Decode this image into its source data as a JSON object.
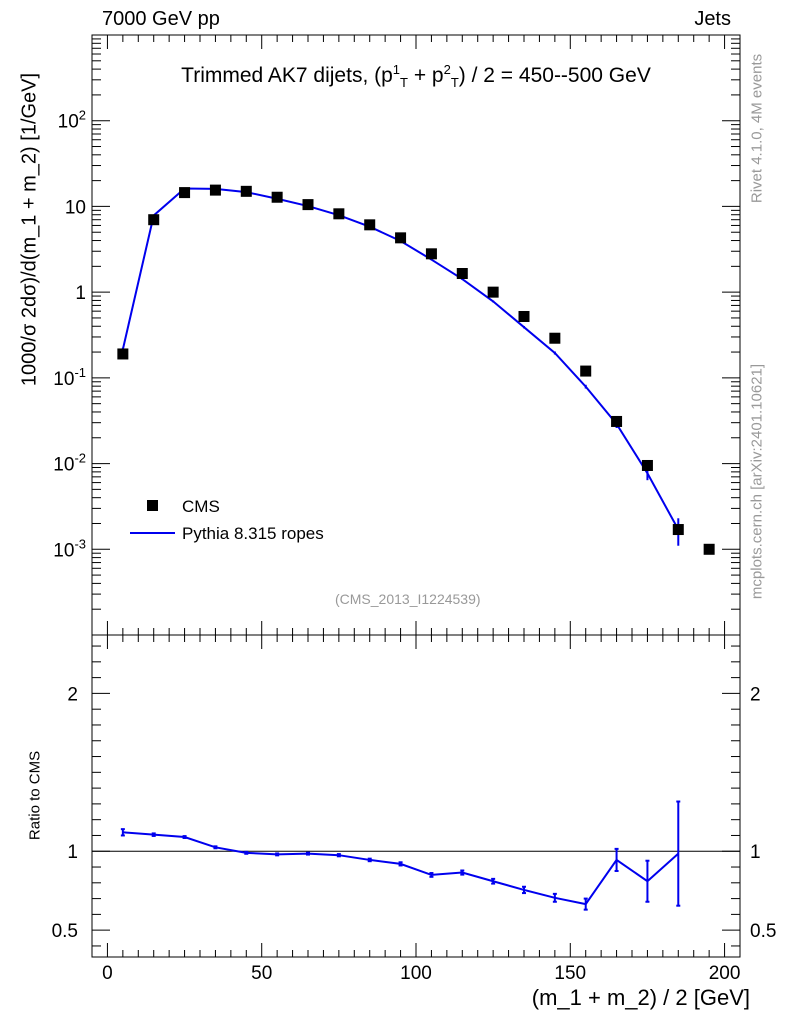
{
  "header": {
    "left": "7000 GeV pp",
    "right": "Jets"
  },
  "title": {
    "prefix": "Trimmed AK7 dijets, (p",
    "sup1": "1",
    "sub1": "T",
    "mid": " + p",
    "sup2": "2",
    "sub2": "T",
    "suffix": ") / 2 = 450--500 GeV"
  },
  "side_labels": {
    "rivet": "Rivet 4.1.0,  4M events",
    "mcplots": "mcplots.cern.ch [arXiv:2401.10621]"
  },
  "analysis_ref": "(CMS_2013_I1224539)",
  "legend": {
    "data_label": "CMS",
    "mc_label": "Pythia 8.315 ropes"
  },
  "colors": {
    "data": "#000000",
    "mc": "#0000ee",
    "side_text": "#999999"
  },
  "chart_data": [
    {
      "type": "scatter",
      "panel": "main",
      "yscale": "log",
      "ylabel": "1000/σ  2dσ)/d(m_1 + m_2) [1/GeV]",
      "xlim": [
        -5,
        205
      ],
      "ylim": [
        0.0001,
        1000
      ],
      "y_tick_labels": [
        "10^-3",
        "10^-2",
        "10^-1",
        "1",
        "10",
        "10^2"
      ],
      "series": [
        {
          "name": "CMS",
          "style": "markers",
          "x": [
            5,
            15,
            25,
            35,
            45,
            55,
            65,
            75,
            85,
            95,
            105,
            115,
            125,
            135,
            145,
            155,
            165,
            175,
            185,
            195
          ],
          "y": [
            0.19,
            7.0,
            14.5,
            15.5,
            15.0,
            12.8,
            10.5,
            8.2,
            6.1,
            4.3,
            2.8,
            1.65,
            1.0,
            0.52,
            0.29,
            0.12,
            0.031,
            0.0095,
            0.0017,
            0.001
          ]
        },
        {
          "name": "Pythia 8.315 ropes",
          "style": "line",
          "x": [
            5,
            15,
            25,
            35,
            45,
            55,
            65,
            75,
            85,
            95,
            105,
            115,
            125,
            135,
            145,
            155,
            165,
            175,
            185
          ],
          "y": [
            0.215,
            7.85,
            16.2,
            16.0,
            14.7,
            12.3,
            10.1,
            7.9,
            5.8,
            3.95,
            2.4,
            1.42,
            0.78,
            0.39,
            0.195,
            0.079,
            0.029,
            0.0077,
            0.0017
          ],
          "y_err": [
            0.01,
            0.1,
            0.15,
            0.15,
            0.12,
            0.1,
            0.1,
            0.08,
            0.06,
            0.05,
            0.04,
            0.03,
            0.02,
            0.012,
            0.008,
            0.004,
            0.003,
            0.0013,
            0.0006
          ]
        }
      ]
    },
    {
      "type": "line",
      "panel": "ratio",
      "ylabel": "Ratio to CMS",
      "xlabel": "(m_1 + m_2) / 2 [GeV]",
      "xlim": [
        -5,
        205
      ],
      "ylim": [
        0.33,
        2.37
      ],
      "y_tick_labels": [
        "0.5",
        "1",
        "2"
      ],
      "x_tick_labels": [
        "0",
        "50",
        "100",
        "150",
        "200"
      ],
      "reference": 1,
      "series": [
        {
          "name": "Pythia 8.315 ropes",
          "x": [
            5,
            15,
            25,
            35,
            45,
            55,
            65,
            75,
            85,
            95,
            105,
            115,
            125,
            135,
            145,
            155,
            165,
            175,
            185
          ],
          "y": [
            1.12,
            1.105,
            1.09,
            1.025,
            0.99,
            0.98,
            0.985,
            0.975,
            0.945,
            0.92,
            0.85,
            0.865,
            0.81,
            0.755,
            0.705,
            0.665,
            0.945,
            0.81,
            0.985
          ],
          "y_err": [
            0.02,
            0.008,
            0.006,
            0.006,
            0.006,
            0.006,
            0.006,
            0.007,
            0.008,
            0.01,
            0.012,
            0.013,
            0.015,
            0.02,
            0.025,
            0.035,
            0.07,
            0.13,
            0.33
          ]
        }
      ]
    }
  ]
}
